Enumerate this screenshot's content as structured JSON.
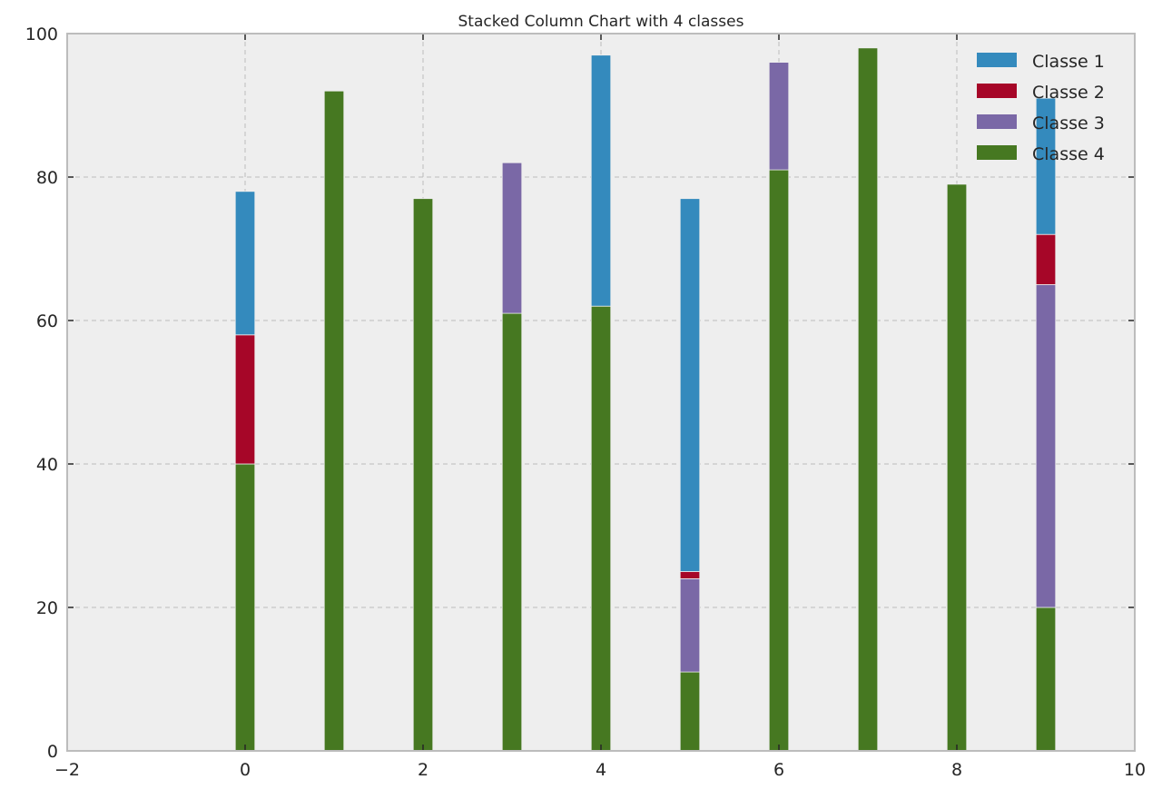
{
  "chart_data": {
    "type": "bar",
    "stacked": true,
    "title": "Stacked Column Chart with 4 classes",
    "xlabel": "",
    "ylabel": "",
    "xlim": [
      -2,
      10
    ],
    "ylim": [
      0,
      100
    ],
    "x_ticks": [
      -2,
      0,
      2,
      4,
      6,
      8,
      10
    ],
    "x_tick_labels": [
      "−2",
      "0",
      "2",
      "4",
      "6",
      "8",
      "10"
    ],
    "y_ticks": [
      0,
      20,
      40,
      60,
      80,
      100
    ],
    "y_tick_labels": [
      "0",
      "20",
      "40",
      "60",
      "80",
      "100"
    ],
    "grid": true,
    "legend_position": "top-right",
    "x": [
      0,
      1,
      2,
      3,
      4,
      5,
      6,
      7,
      8,
      9
    ],
    "stack_order_bottom_to_top": [
      "Classe 4",
      "Classe 3",
      "Classe 2",
      "Classe 1"
    ],
    "series": [
      {
        "name": "Classe 1",
        "color": "#348abd",
        "values": [
          20,
          0,
          0,
          0,
          35,
          52,
          0,
          0,
          0,
          19
        ]
      },
      {
        "name": "Classe 2",
        "color": "#a60628",
        "values": [
          18,
          0,
          0,
          0,
          0,
          1,
          0,
          0,
          0,
          7
        ]
      },
      {
        "name": "Classe 3",
        "color": "#7a68a6",
        "values": [
          0,
          0,
          0,
          21,
          0,
          13,
          15,
          0,
          0,
          45
        ]
      },
      {
        "name": "Classe 4",
        "color": "#467821",
        "values": [
          40,
          92,
          77,
          61,
          62,
          11,
          81,
          98,
          79,
          20
        ]
      }
    ]
  }
}
